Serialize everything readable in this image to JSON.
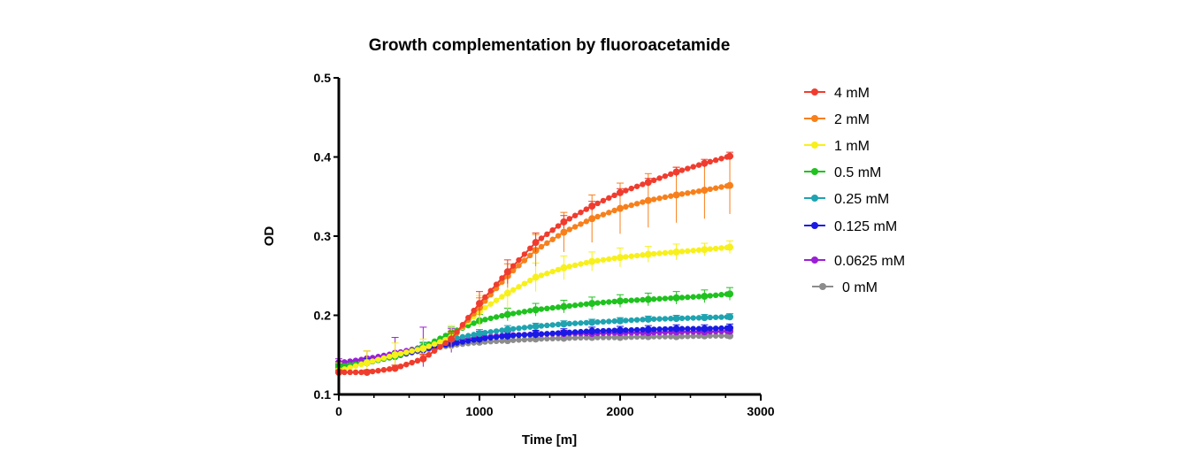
{
  "chart_data": {
    "type": "line",
    "title": "Growth complementation by fluoroacetamide",
    "xlabel": "Time [m]",
    "ylabel": "OD",
    "xlim": [
      0,
      3000
    ],
    "ylim": [
      0.1,
      0.5
    ],
    "xticks": [
      0,
      1000,
      2000,
      3000
    ],
    "yticks": [
      0.1,
      0.2,
      0.3,
      0.4,
      0.5
    ],
    "xtick_labels": [
      "0",
      "1000",
      "2000",
      "3000"
    ],
    "ytick_labels": [
      "0.1",
      "0.2",
      "0.3",
      "0.4",
      "0.5"
    ],
    "legend_position": "right",
    "x": [
      0,
      200,
      400,
      600,
      800,
      1000,
      1200,
      1400,
      1600,
      1800,
      2000,
      2200,
      2400,
      2600,
      2780
    ],
    "series": [
      {
        "name": "4 mM",
        "color": "#f03c2e",
        "values": [
          0.128,
          0.128,
          0.133,
          0.145,
          0.17,
          0.215,
          0.255,
          0.292,
          0.318,
          0.338,
          0.355,
          0.368,
          0.381,
          0.392,
          0.401
        ],
        "errors": [
          0.003,
          0.003,
          0.004,
          0.006,
          0.01,
          0.015,
          0.015,
          0.012,
          0.008,
          0.006,
          0.005,
          0.005,
          0.006,
          0.005,
          0.005
        ]
      },
      {
        "name": "2 mM",
        "color": "#f7801c",
        "values": [
          0.128,
          0.128,
          0.133,
          0.145,
          0.17,
          0.21,
          0.25,
          0.282,
          0.305,
          0.322,
          0.335,
          0.345,
          0.352,
          0.358,
          0.364
        ],
        "errors": [
          0.003,
          0.003,
          0.004,
          0.005,
          0.008,
          0.012,
          0.015,
          0.02,
          0.025,
          0.03,
          0.032,
          0.034,
          0.035,
          0.036,
          0.036
        ]
      },
      {
        "name": "1 mM",
        "color": "#f7f01c",
        "values": [
          0.13,
          0.14,
          0.15,
          0.158,
          0.172,
          0.205,
          0.228,
          0.248,
          0.26,
          0.268,
          0.273,
          0.277,
          0.28,
          0.283,
          0.286
        ],
        "errors": [
          0.01,
          0.015,
          0.015,
          0.012,
          0.015,
          0.02,
          0.02,
          0.018,
          0.015,
          0.012,
          0.012,
          0.01,
          0.01,
          0.008,
          0.008
        ]
      },
      {
        "name": "0.5 mM",
        "color": "#1fc21f",
        "values": [
          0.135,
          0.14,
          0.148,
          0.16,
          0.178,
          0.193,
          0.201,
          0.207,
          0.211,
          0.215,
          0.218,
          0.22,
          0.222,
          0.224,
          0.227
        ],
        "errors": [
          0.004,
          0.004,
          0.005,
          0.006,
          0.007,
          0.008,
          0.008,
          0.008,
          0.008,
          0.008,
          0.008,
          0.008,
          0.008,
          0.008,
          0.008
        ]
      },
      {
        "name": "0.25 mM",
        "color": "#1fa3b0",
        "values": [
          0.135,
          0.14,
          0.148,
          0.16,
          0.17,
          0.177,
          0.182,
          0.186,
          0.189,
          0.191,
          0.193,
          0.195,
          0.196,
          0.197,
          0.198
        ],
        "errors": [
          0.004,
          0.004,
          0.005,
          0.005,
          0.005,
          0.005,
          0.005,
          0.004,
          0.004,
          0.004,
          0.004,
          0.004,
          0.004,
          0.004,
          0.004
        ]
      },
      {
        "name": "0.125 mM",
        "color": "#1a1ae6",
        "values": [
          0.135,
          0.14,
          0.148,
          0.157,
          0.164,
          0.17,
          0.174,
          0.176,
          0.178,
          0.18,
          0.181,
          0.182,
          0.183,
          0.183,
          0.184
        ],
        "errors": [
          0.005,
          0.005,
          0.005,
          0.005,
          0.005,
          0.005,
          0.005,
          0.005,
          0.005,
          0.005,
          0.005,
          0.005,
          0.005,
          0.005,
          0.005
        ]
      },
      {
        "name": "0.0625 mM",
        "color": "#9b1fd6",
        "values": [
          0.14,
          0.145,
          0.152,
          0.16,
          0.168,
          0.172,
          0.175,
          0.176,
          0.177,
          0.177,
          0.178,
          0.178,
          0.179,
          0.179,
          0.18
        ],
        "errors": [
          0.005,
          0.01,
          0.02,
          0.025,
          0.015,
          0.008,
          0.005,
          0.004,
          0.004,
          0.004,
          0.004,
          0.004,
          0.004,
          0.004,
          0.004
        ]
      },
      {
        "name": "0 mM",
        "color": "#8c8c8c",
        "values": [
          0.138,
          0.142,
          0.148,
          0.156,
          0.162,
          0.166,
          0.168,
          0.17,
          0.171,
          0.172,
          0.172,
          0.173,
          0.173,
          0.174,
          0.174
        ],
        "errors": [
          0.004,
          0.004,
          0.004,
          0.004,
          0.004,
          0.004,
          0.004,
          0.004,
          0.004,
          0.004,
          0.004,
          0.004,
          0.004,
          0.004,
          0.004
        ]
      }
    ]
  }
}
